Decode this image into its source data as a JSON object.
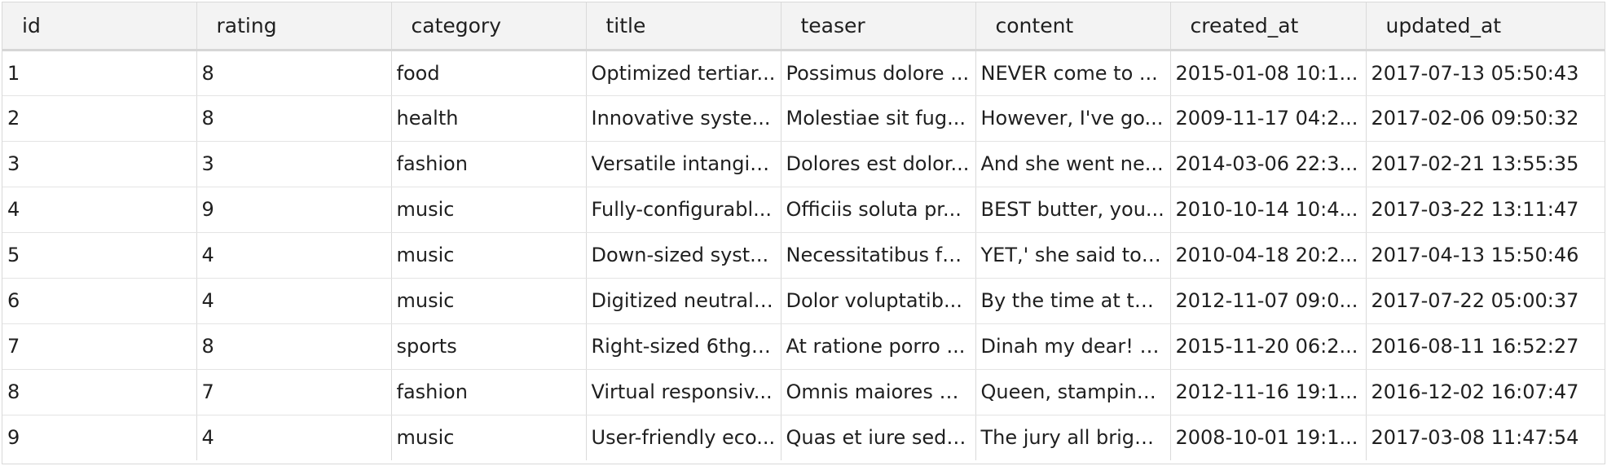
{
  "table": {
    "columns": [
      "id",
      "rating",
      "category",
      "title",
      "teaser",
      "content",
      "created_at",
      "updated_at"
    ],
    "rows": [
      {
        "id": "1",
        "rating": "8",
        "category": "food",
        "title": "Optimized tertiar...",
        "teaser": "Possimus dolore ...",
        "content": "NEVER come to ...",
        "created_at": "2015-01-08 10:1...",
        "updated_at": "2017-07-13 05:50:43"
      },
      {
        "id": "2",
        "rating": "8",
        "category": "health",
        "title": "Innovative syste...",
        "teaser": "Molestiae sit fug...",
        "content": "However, I've go...",
        "created_at": "2009-11-17 04:2...",
        "updated_at": "2017-02-06 09:50:32"
      },
      {
        "id": "3",
        "rating": "3",
        "category": "fashion",
        "title": "Versatile intangib...",
        "teaser": "Dolores est dolor...",
        "content": "And she went ne...",
        "created_at": "2014-03-06 22:3...",
        "updated_at": "2017-02-21 13:55:35"
      },
      {
        "id": "4",
        "rating": "9",
        "category": "music",
        "title": "Fully-configurabl...",
        "teaser": "Officiis soluta pr...",
        "content": "BEST butter, you...",
        "created_at": "2010-10-14 10:4...",
        "updated_at": "2017-03-22 13:11:47"
      },
      {
        "id": "5",
        "rating": "4",
        "category": "music",
        "title": "Down-sized syst...",
        "teaser": "Necessitatibus fa...",
        "content": "YET,' she said to ...",
        "created_at": "2010-04-18 20:2...",
        "updated_at": "2017-04-13 15:50:46"
      },
      {
        "id": "6",
        "rating": "4",
        "category": "music",
        "title": "Digitized neutral ...",
        "teaser": "Dolor voluptatib...",
        "content": "By the time at th...",
        "created_at": "2012-11-07 09:0...",
        "updated_at": "2017-07-22 05:00:37"
      },
      {
        "id": "7",
        "rating": "8",
        "category": "sports",
        "title": "Right-sized 6thge...",
        "teaser": "At ratione porro ...",
        "content": "Dinah my dear! I ...",
        "created_at": "2015-11-20 06:2...",
        "updated_at": "2016-08-11 16:52:27"
      },
      {
        "id": "8",
        "rating": "7",
        "category": "fashion",
        "title": "Virtual responsiv...",
        "teaser": "Omnis maiores q...",
        "content": "Queen, stamping...",
        "created_at": "2012-11-16 19:1...",
        "updated_at": "2016-12-02 16:07:47"
      },
      {
        "id": "9",
        "rating": "4",
        "category": "music",
        "title": "User-friendly eco...",
        "teaser": "Quas et iure sed ...",
        "content": "The jury all brigh...",
        "created_at": "2008-10-01 19:1...",
        "updated_at": "2017-03-08 11:47:54"
      }
    ]
  }
}
